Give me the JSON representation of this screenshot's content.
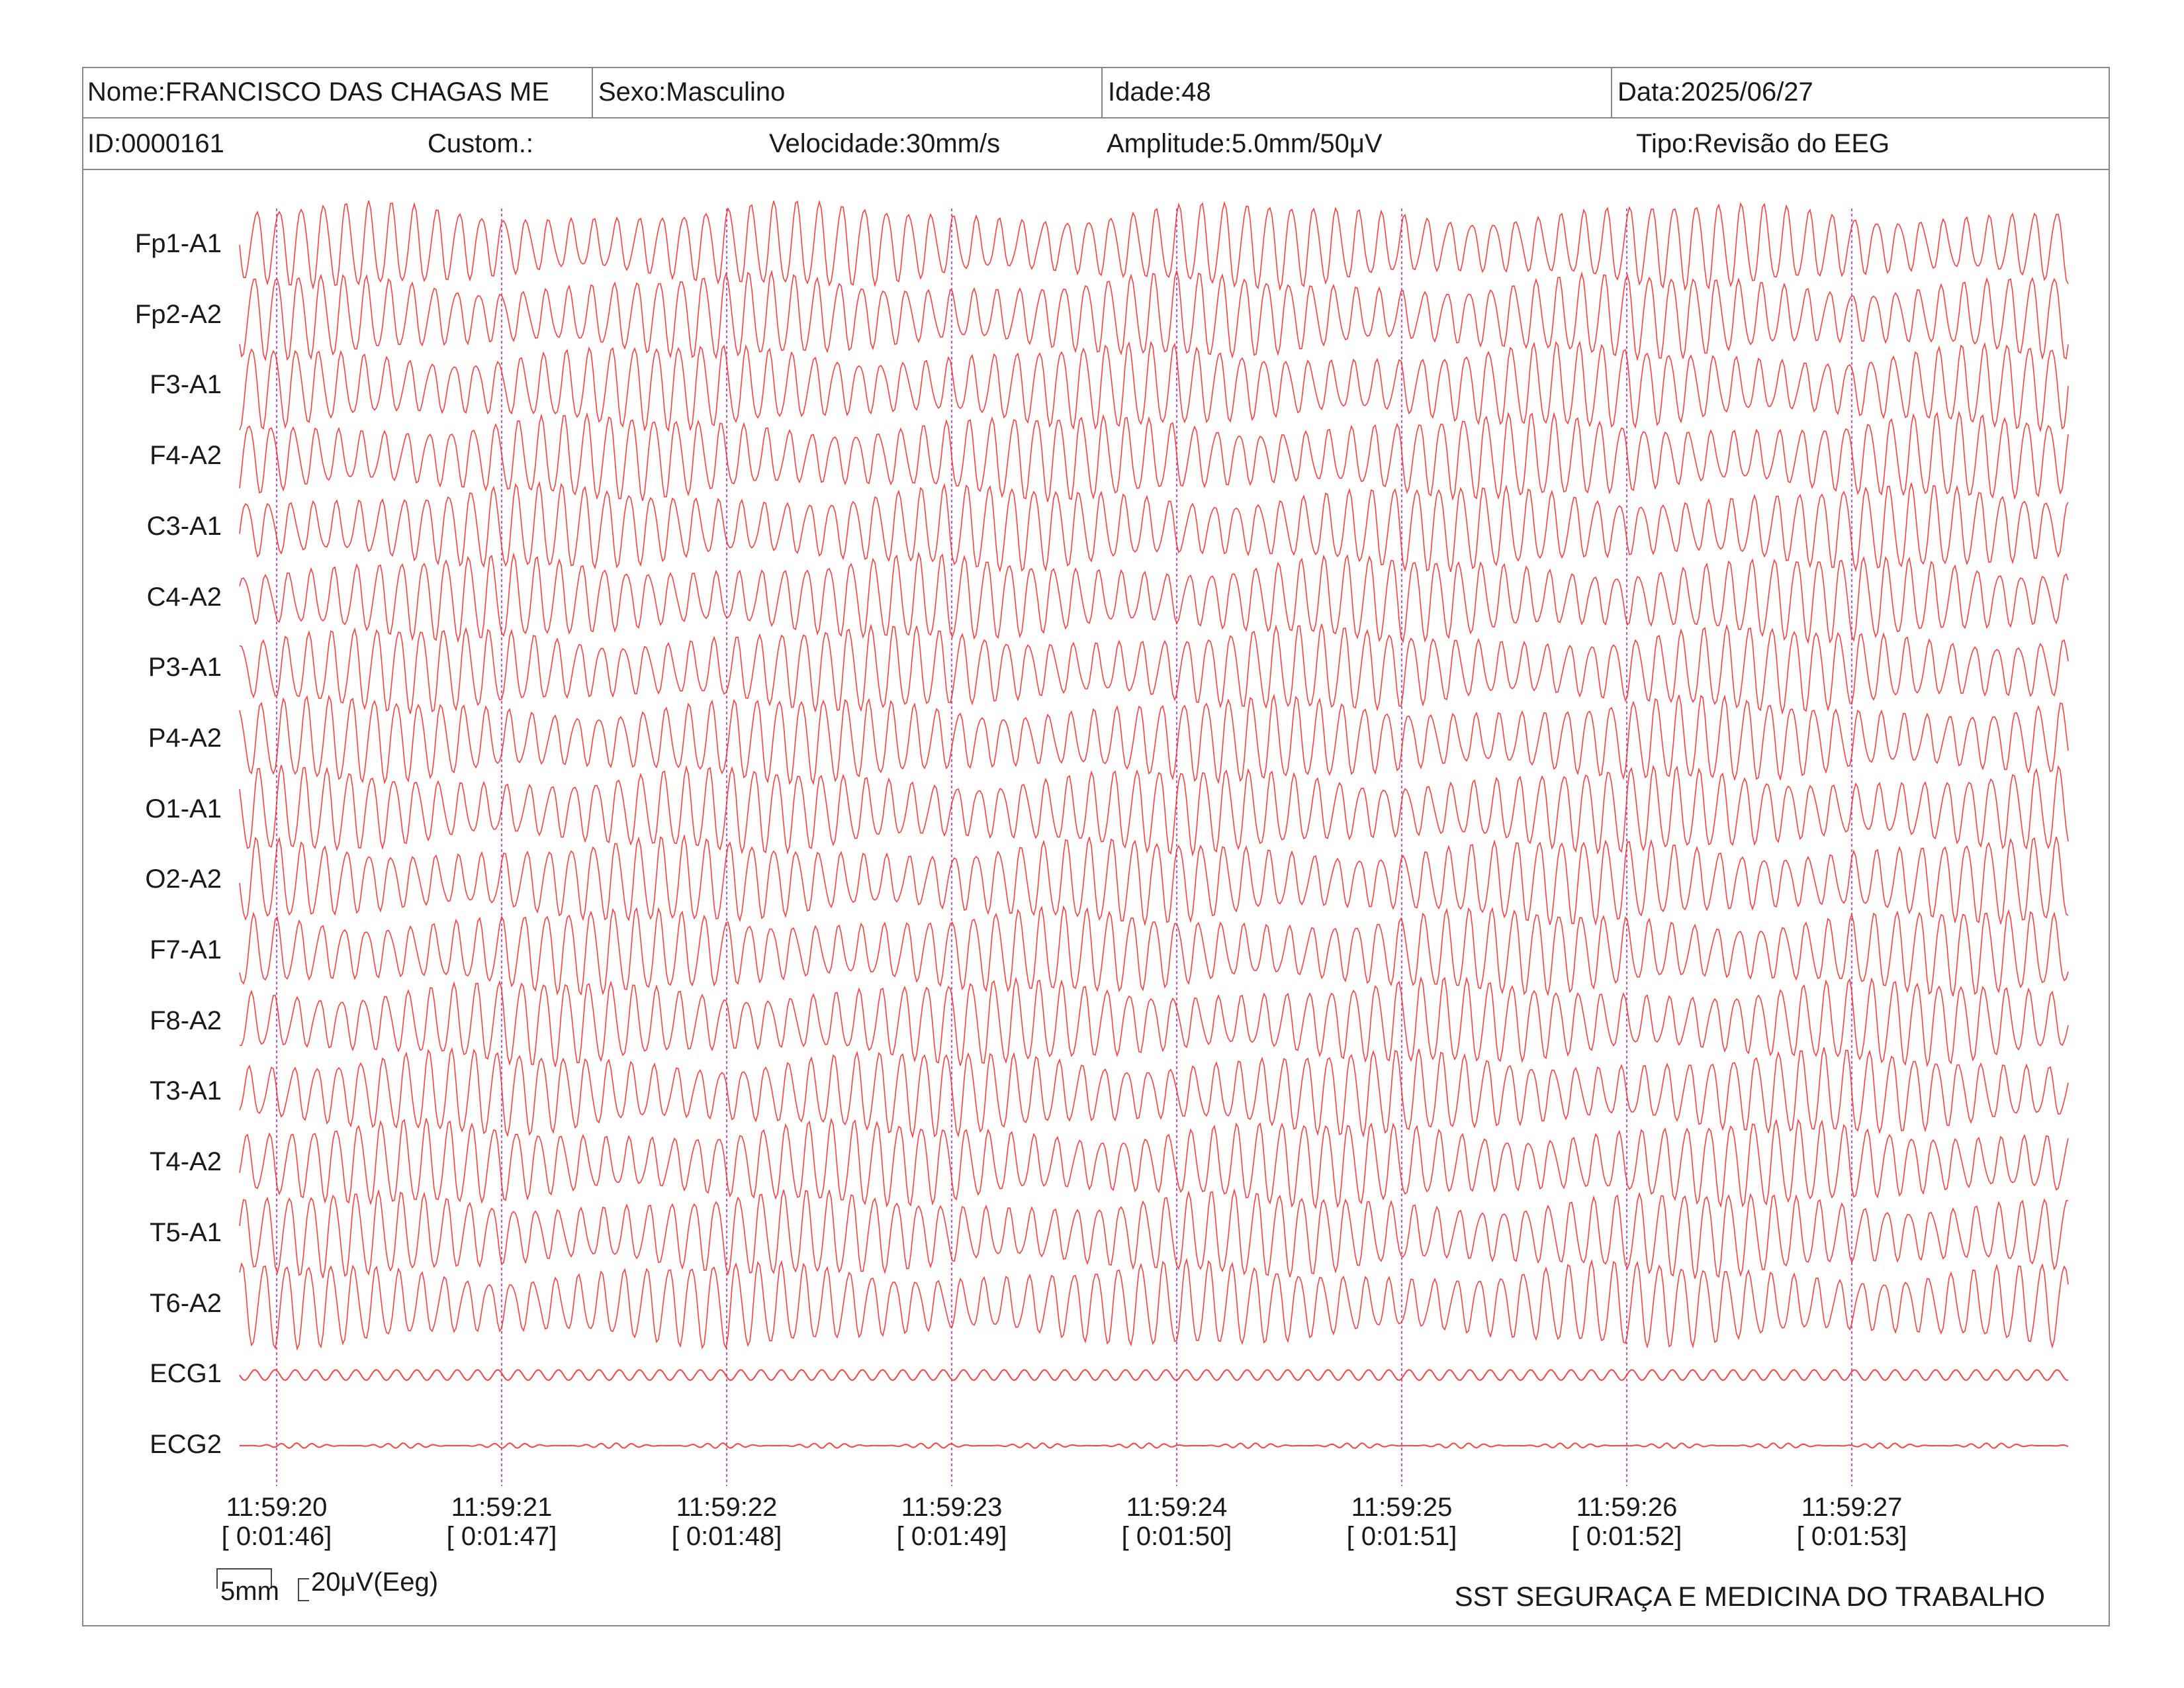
{
  "header": {
    "nome": "Nome:FRANCISCO DAS CHAGAS ME",
    "sexo": "Sexo:Masculino",
    "idade": "Idade:48",
    "data": "Data:2025/06/27",
    "id": "ID:0000161",
    "custom": "Custom.:",
    "velocidade": "Velocidade:30mm/s",
    "amplitude": "Amplitude:5.0mm/50μV",
    "tipo": "Tipo:Revisão do EEG"
  },
  "scale": {
    "time": "5mm",
    "amplitude": "20μV(Eeg)"
  },
  "footer": "SST SEGURAÇA E MEDICINA DO TRABALHO",
  "colors": {
    "trace": "#ff2a2a",
    "marker": "#d050d0",
    "border": "#888888"
  },
  "chart_data": {
    "type": "line",
    "channels": [
      "Fp1-A1",
      "Fp2-A2",
      "F3-A1",
      "F4-A2",
      "C3-A1",
      "C4-A2",
      "P3-A1",
      "P4-A2",
      "O1-A1",
      "O2-A2",
      "F7-A1",
      "F8-A2",
      "T3-A1",
      "T4-A2",
      "T5-A1",
      "T6-A2",
      "ECG1",
      "ECG2"
    ],
    "time_marks": [
      {
        "clock": "11:59:20",
        "elapsed": "[ 0:01:46]"
      },
      {
        "clock": "11:59:21",
        "elapsed": "[ 0:01:47]"
      },
      {
        "clock": "11:59:22",
        "elapsed": "[ 0:01:48]"
      },
      {
        "clock": "11:59:23",
        "elapsed": "[ 0:01:49]"
      },
      {
        "clock": "11:59:24",
        "elapsed": "[ 0:01:50]"
      },
      {
        "clock": "11:59:25",
        "elapsed": "[ 0:01:51]"
      },
      {
        "clock": "11:59:26",
        "elapsed": "[ 0:01:52]"
      },
      {
        "clock": "11:59:27",
        "elapsed": "[ 0:01:53]"
      }
    ],
    "speed_mm_per_s": 30,
    "sensitivity": "5.0mm/50μV",
    "approx_frequency_hz": 10
  }
}
